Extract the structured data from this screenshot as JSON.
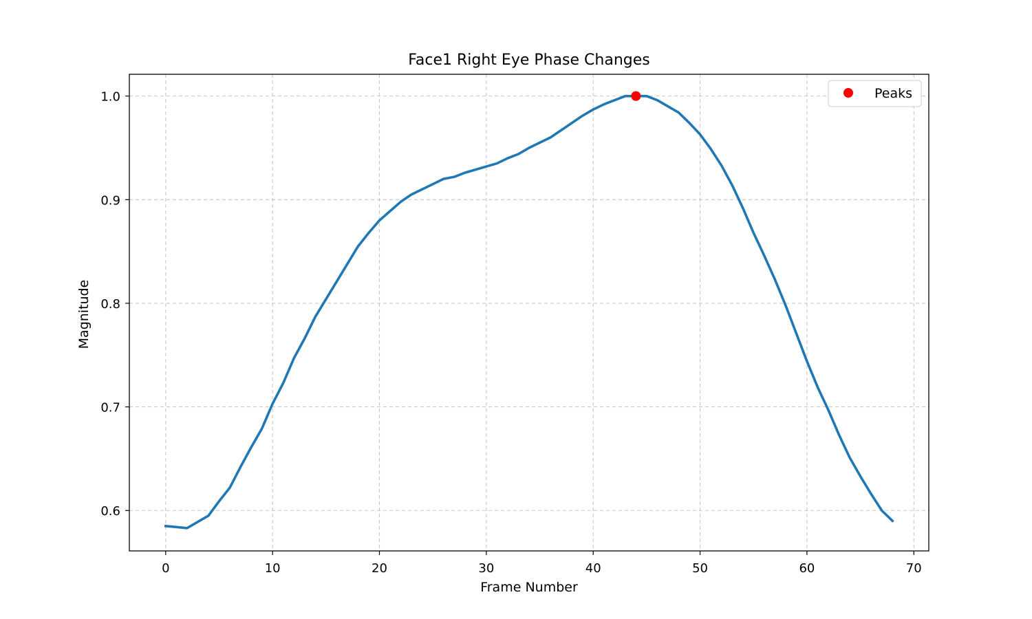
{
  "chart_data": {
    "type": "line",
    "title": "Face1 Right Eye Phase Changes",
    "xlabel": "Frame Number",
    "ylabel": "Magnitude",
    "xlim": [
      -3.4,
      71.4
    ],
    "ylim": [
      0.561,
      1.021
    ],
    "x_ticks": [
      0,
      10,
      20,
      30,
      40,
      50,
      60,
      70
    ],
    "y_ticks": [
      0.6,
      0.7,
      0.8,
      0.9,
      1.0
    ],
    "x_tick_labels": [
      "0",
      "10",
      "20",
      "30",
      "40",
      "50",
      "60",
      "70"
    ],
    "y_tick_labels": [
      "0.6",
      "0.7",
      "0.8",
      "0.9",
      "1.0"
    ],
    "grid": true,
    "legend_position": "top-right",
    "colors": {
      "line": "#1f77b4",
      "peaks": "#ff0000"
    },
    "series": [
      {
        "x": [
          0,
          1,
          2,
          3,
          4,
          5,
          6,
          7,
          8,
          9,
          10,
          11,
          12,
          13,
          14,
          15,
          16,
          17,
          18,
          19,
          20,
          21,
          22,
          23,
          24,
          25,
          26,
          27,
          28,
          29,
          30,
          31,
          32,
          33,
          34,
          35,
          36,
          37,
          38,
          39,
          40,
          41,
          42,
          43,
          44,
          45,
          46,
          47,
          48,
          49,
          50,
          51,
          52,
          53,
          54,
          55,
          56,
          57,
          58,
          59,
          60,
          61,
          62,
          63,
          64,
          65,
          66,
          67,
          68
        ],
        "values": [
          0.585,
          0.584,
          0.583,
          0.589,
          0.595,
          0.609,
          0.622,
          0.642,
          0.661,
          0.679,
          0.703,
          0.723,
          0.747,
          0.766,
          0.787,
          0.804,
          0.821,
          0.838,
          0.855,
          0.868,
          0.88,
          0.889,
          0.898,
          0.905,
          0.91,
          0.915,
          0.92,
          0.922,
          0.926,
          0.929,
          0.932,
          0.935,
          0.94,
          0.944,
          0.95,
          0.955,
          0.96,
          0.967,
          0.974,
          0.981,
          0.987,
          0.992,
          0.996,
          1.0,
          1.0,
          1.0,
          0.996,
          0.99,
          0.984,
          0.974,
          0.963,
          0.949,
          0.933,
          0.914,
          0.892,
          0.868,
          0.846,
          0.823,
          0.798,
          0.771,
          0.744,
          0.719,
          0.697,
          0.673,
          0.651,
          0.633,
          0.616,
          0.6,
          0.59
        ]
      },
      {
        "name": "Peaks",
        "x": [
          44
        ],
        "values": [
          1.0
        ]
      }
    ]
  }
}
